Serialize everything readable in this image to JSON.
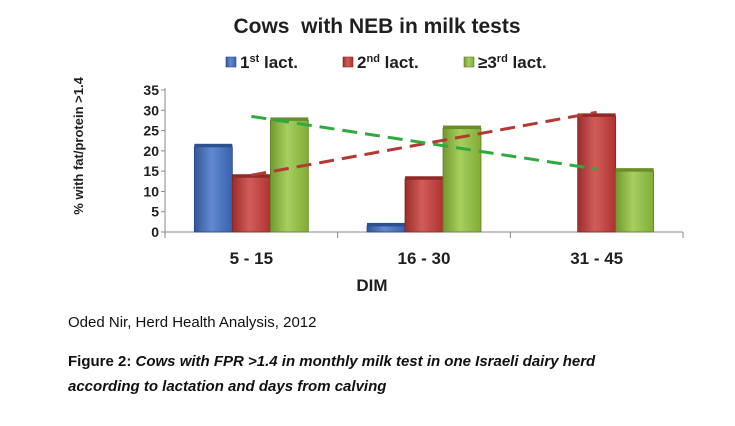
{
  "chart_data": {
    "type": "bar",
    "title": "Cows  with NEB in milk tests",
    "xlabel": "DIM",
    "ylabel": "% with fat/protein >1.4",
    "categories": [
      "5 - 15",
      "16 - 30",
      "31 - 45"
    ],
    "ylim": [
      0,
      35
    ],
    "yticks": [
      0,
      5,
      10,
      15,
      20,
      25,
      30,
      35
    ],
    "legend_position": "top",
    "series": [
      {
        "name": "1st lact.",
        "name_base": "1",
        "name_sup": "st",
        "name_rest": " lact.",
        "color": "#3f6fc6",
        "values": [
          21,
          1.5,
          0
        ]
      },
      {
        "name": "2nd lact.",
        "name_base": "2",
        "name_sup": "nd",
        "name_rest": " lact.",
        "color": "#c73a36",
        "values": [
          13.5,
          13,
          28.5
        ]
      },
      {
        "name": "≥3rd lact.",
        "name_base": "≥3",
        "name_sup": "rd",
        "name_rest": " lact.",
        "color": "#92c43c",
        "values": [
          27.5,
          25.5,
          15
        ]
      }
    ],
    "trendlines": [
      {
        "series": "2nd lact.",
        "color": "#b23a34",
        "style": "dashed",
        "x": [
          "5 - 15",
          "31 - 45"
        ],
        "y": [
          14,
          29.5
        ]
      },
      {
        "series": "≥3rd lact.",
        "color": "#2faa3c",
        "style": "dashed",
        "x": [
          "5 - 15",
          "31 - 45"
        ],
        "y": [
          28.5,
          15.5
        ]
      }
    ]
  },
  "source": "Oded Nir, Herd Health Analysis, 2012",
  "caption": {
    "label": "Figure 2:",
    "text": "Cows with FPR >1.4 in monthly milk test in one Israeli dairy herd according to lactation and days from calving"
  }
}
